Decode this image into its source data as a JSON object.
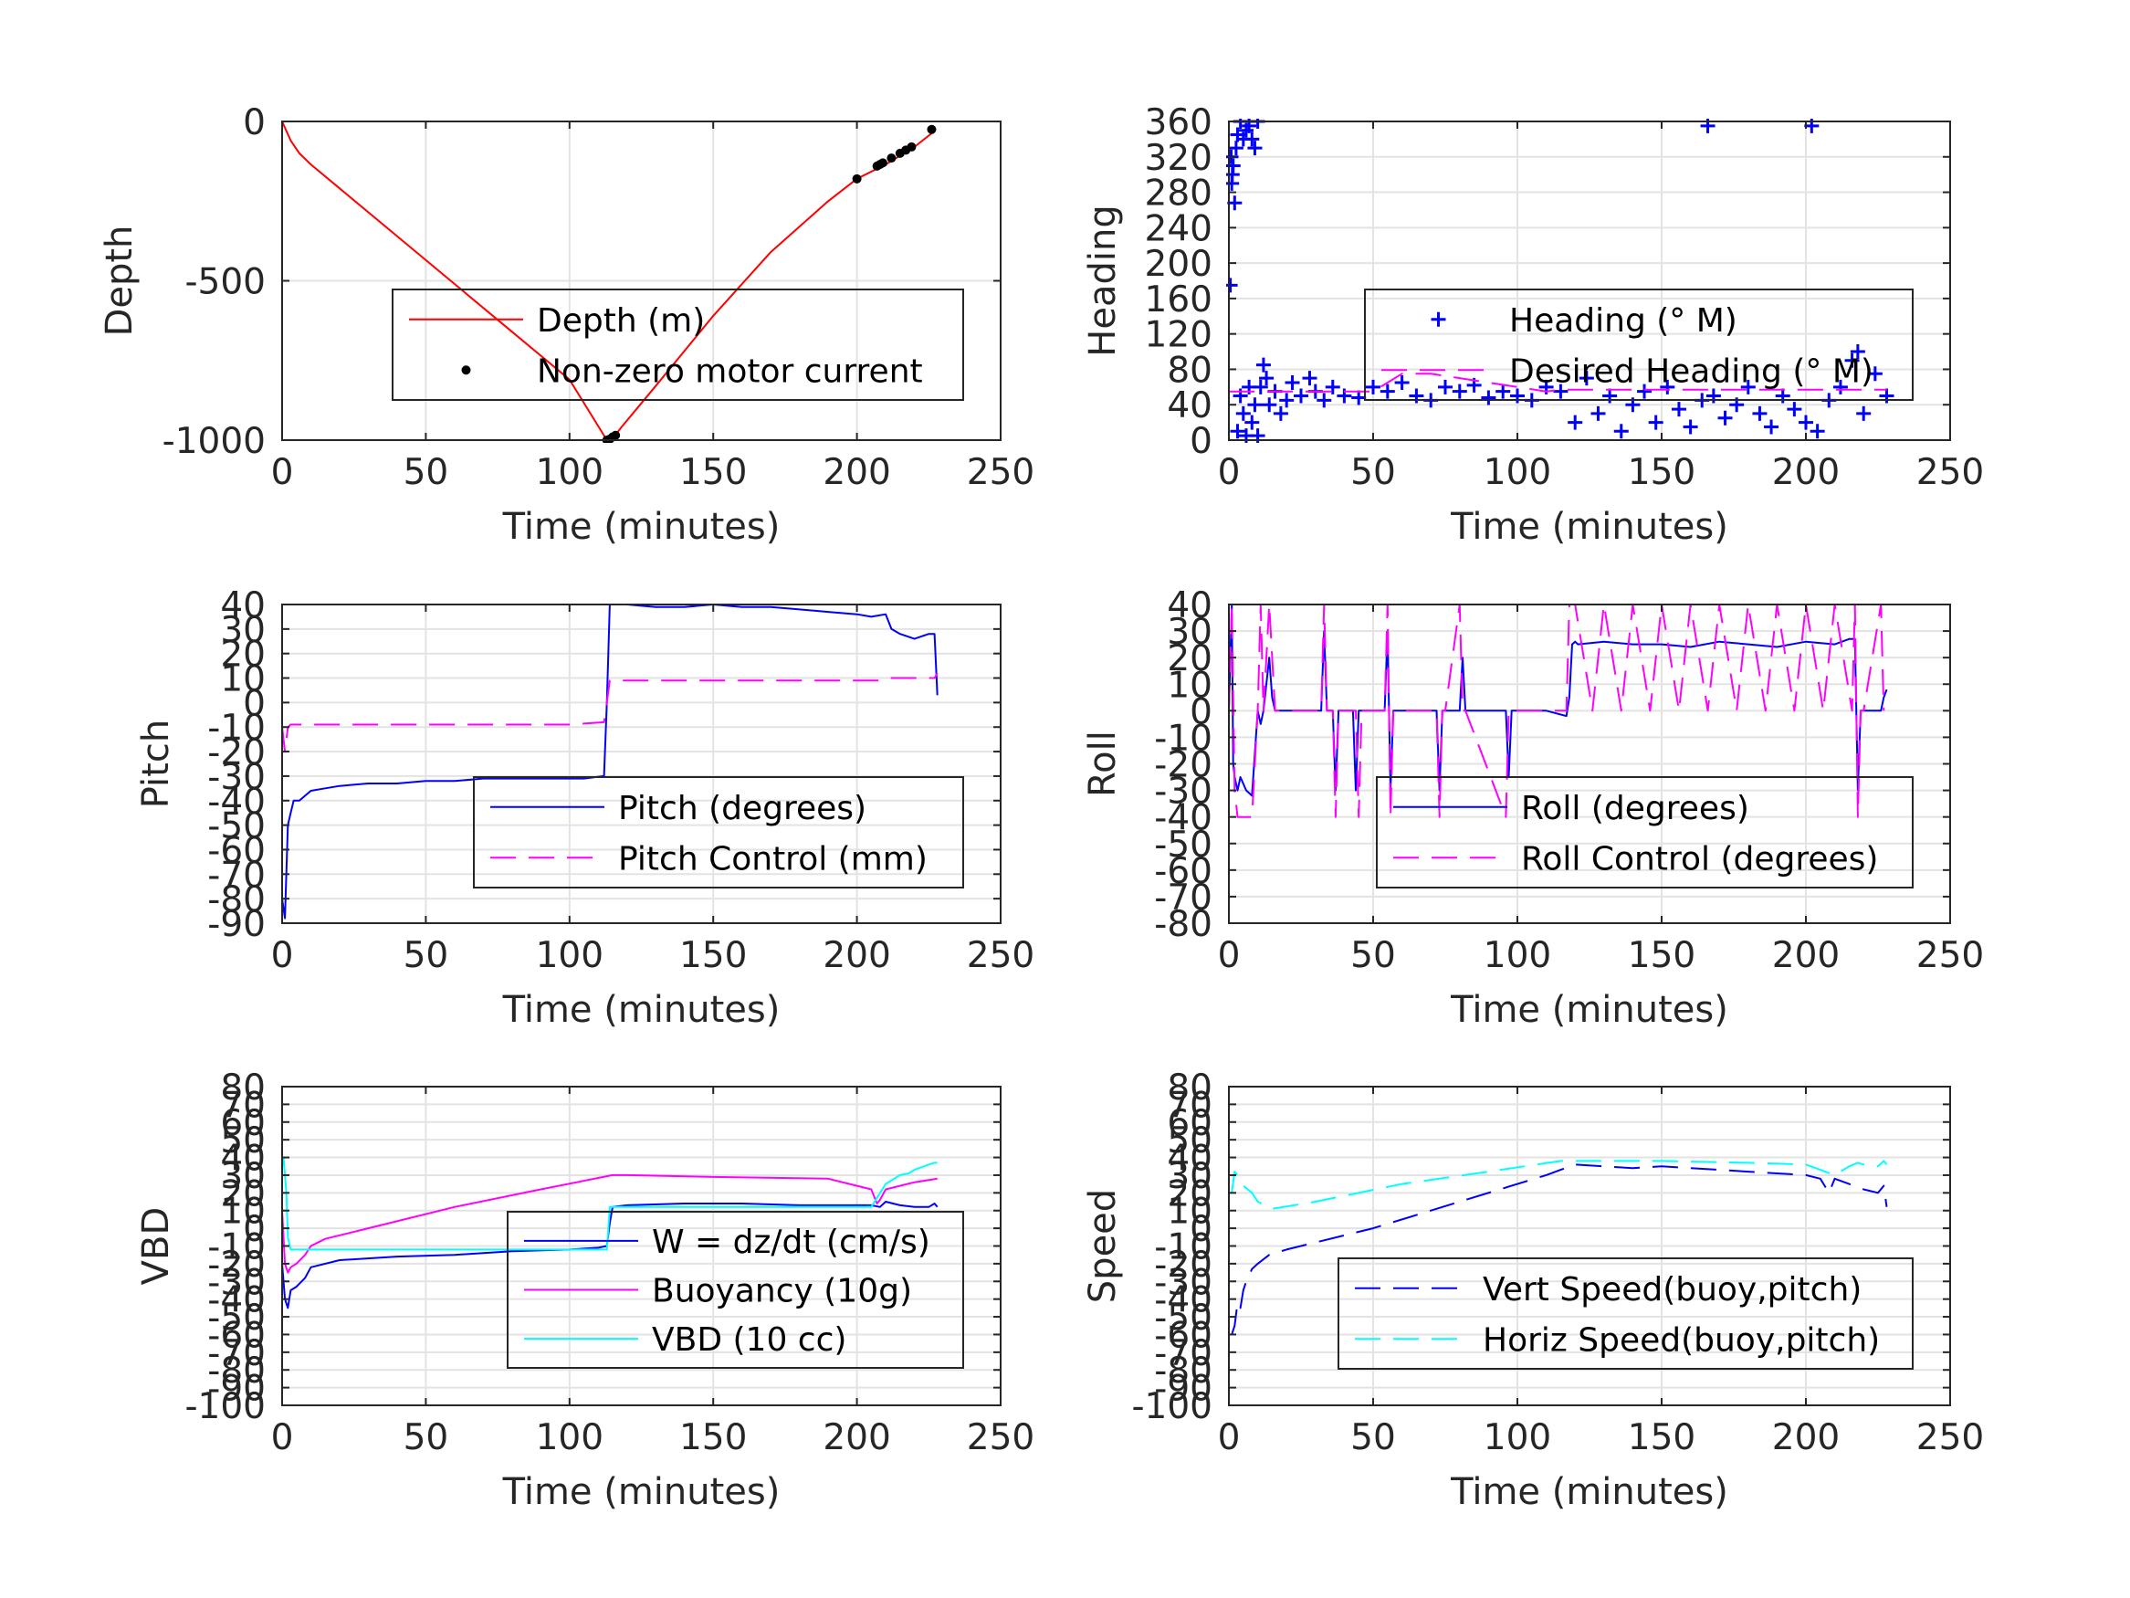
{
  "chart_data": [
    {
      "type": "line",
      "xlabel": "Time (minutes)",
      "ylabel": "Depth",
      "xlim": [
        0,
        250
      ],
      "ylim": [
        -1000,
        0
      ],
      "xticks": [
        0,
        50,
        100,
        150,
        200,
        250
      ],
      "yticks": [
        -1000,
        -500,
        0
      ],
      "grid": true,
      "legend": "center-right",
      "series": [
        {
          "name": "Depth (m)",
          "style": "solid",
          "color": "#ff0000",
          "x": [
            0,
            3,
            6,
            10,
            20,
            40,
            60,
            80,
            100,
            113,
            115,
            118,
            130,
            150,
            170,
            190,
            200,
            210,
            220,
            227
          ],
          "y": [
            0,
            -60,
            -100,
            -135,
            -210,
            -360,
            -510,
            -660,
            -810,
            -1000,
            -995,
            -960,
            -830,
            -610,
            -410,
            -250,
            -180,
            -135,
            -80,
            -30
          ]
        },
        {
          "name": "Non-zero motor current",
          "style": "dots",
          "color": "#000000",
          "x": [
            113,
            114,
            115,
            116,
            200,
            207,
            208,
            209,
            212,
            215,
            217,
            219,
            226
          ],
          "y": [
            -1000,
            -997,
            -990,
            -985,
            -180,
            -140,
            -135,
            -130,
            -115,
            -100,
            -90,
            -80,
            -25
          ]
        }
      ]
    },
    {
      "type": "scatter",
      "xlabel": "Time (minutes)",
      "ylabel": "Heading",
      "xlim": [
        0,
        250
      ],
      "ylim": [
        0,
        360
      ],
      "xticks": [
        0,
        50,
        100,
        150,
        200,
        250
      ],
      "yticks": [
        0,
        40,
        80,
        120,
        160,
        200,
        240,
        280,
        320,
        360
      ],
      "grid": true,
      "legend": "center-right",
      "series": [
        {
          "name": "Heading (° M)",
          "style": "plus",
          "color": "#0000ff",
          "x": [
            0.5,
            1,
            1.5,
            2,
            2.5,
            3,
            4,
            5,
            6,
            7,
            8,
            9,
            10,
            0.8,
            1.2,
            3,
            4,
            5,
            6,
            7,
            8,
            9,
            10,
            11,
            12,
            13,
            14,
            16,
            18,
            20,
            22,
            25,
            28,
            30,
            33,
            36,
            40,
            45,
            50,
            55,
            60,
            65,
            70,
            75,
            80,
            85,
            90,
            95,
            100,
            105,
            110,
            115,
            120,
            124,
            128,
            132,
            136,
            140,
            144,
            148,
            152,
            156,
            160,
            164,
            166,
            168,
            172,
            176,
            180,
            184,
            188,
            192,
            196,
            200,
            202,
            204,
            208,
            212,
            216,
            218,
            220,
            224,
            228
          ],
          "y": [
            175,
            290,
            310,
            268,
            330,
            345,
            360,
            340,
            350,
            355,
            340,
            330,
            360,
            320,
            300,
            10,
            50,
            30,
            5,
            60,
            20,
            40,
            5,
            60,
            85,
            70,
            40,
            55,
            30,
            45,
            65,
            50,
            70,
            55,
            45,
            60,
            50,
            48,
            60,
            55,
            65,
            50,
            45,
            60,
            55,
            62,
            48,
            55,
            50,
            45,
            60,
            55,
            20,
            70,
            30,
            50,
            10,
            40,
            55,
            20,
            60,
            35,
            15,
            45,
            355,
            50,
            25,
            40,
            60,
            30,
            15,
            50,
            35,
            20,
            355,
            10,
            45,
            60,
            90,
            100,
            30,
            75,
            50
          ]
        },
        {
          "name": "Desired Heading (° M)",
          "style": "dashed",
          "color": "#ff00ff",
          "x": [
            0,
            50,
            60,
            70,
            110,
            115,
            228
          ],
          "y": [
            55,
            55,
            75,
            75,
            55,
            57,
            57
          ]
        }
      ]
    },
    {
      "type": "line",
      "xlabel": "Time (minutes)",
      "ylabel": "Pitch",
      "xlim": [
        0,
        250
      ],
      "ylim": [
        -90,
        40
      ],
      "xticks": [
        0,
        50,
        100,
        150,
        200,
        250
      ],
      "yticks": [
        -90,
        -80,
        -70,
        -60,
        -50,
        -40,
        -30,
        -20,
        -10,
        0,
        10,
        20,
        30,
        40
      ],
      "grid": true,
      "legend": "center-right",
      "series": [
        {
          "name": "Pitch (degrees)",
          "style": "solid",
          "color": "#0000ff",
          "x": [
            0,
            1,
            2,
            3,
            4,
            6,
            8,
            10,
            15,
            20,
            30,
            40,
            50,
            60,
            70,
            80,
            90,
            100,
            105,
            112,
            113,
            114,
            115,
            120,
            130,
            140,
            150,
            160,
            170,
            180,
            190,
            200,
            205,
            210,
            212,
            215,
            220,
            225,
            227,
            228
          ],
          "y": [
            -80,
            -88,
            -50,
            -45,
            -40,
            -40,
            -38,
            -36,
            -35,
            -34,
            -33,
            -33,
            -32,
            -32,
            -31,
            -31,
            -31,
            -31,
            -31,
            -30,
            0,
            40,
            40,
            40,
            39,
            39,
            40,
            39,
            39,
            38,
            37,
            36,
            35,
            36,
            30,
            28,
            26,
            28,
            28,
            3
          ]
        },
        {
          "name": "Pitch Control (mm)",
          "style": "dashed",
          "color": "#ff00ff",
          "x": [
            0,
            1,
            2,
            3,
            5,
            50,
            100,
            112,
            113,
            114,
            120,
            160,
            200,
            208,
            210,
            227,
            228
          ],
          "y": [
            -10,
            -20,
            -10,
            -9,
            -9,
            -9,
            -9,
            -8,
            0,
            9,
            9,
            9,
            9,
            9,
            10,
            10,
            12
          ]
        }
      ]
    },
    {
      "type": "line",
      "xlabel": "Time (minutes)",
      "ylabel": "Roll",
      "xlim": [
        0,
        250
      ],
      "ylim": [
        -80,
        40
      ],
      "xticks": [
        0,
        50,
        100,
        150,
        200,
        250
      ],
      "yticks": [
        -80,
        -70,
        -60,
        -50,
        -40,
        -30,
        -20,
        -10,
        0,
        10,
        20,
        30,
        40
      ],
      "grid": true,
      "legend": "center-right",
      "series": [
        {
          "name": "Roll (degrees)",
          "style": "solid",
          "color": "#0000ff",
          "x": [
            0,
            1,
            1.5,
            2,
            3,
            4,
            6,
            8,
            10,
            11,
            12,
            14,
            15,
            16,
            30,
            32,
            33,
            34,
            36,
            37,
            38,
            43,
            44,
            45,
            46,
            54,
            55,
            56,
            57,
            72,
            73,
            74,
            75,
            80,
            81,
            82,
            96,
            97,
            98,
            110,
            117,
            118,
            119,
            120,
            121,
            130,
            140,
            150,
            160,
            170,
            180,
            190,
            200,
            210,
            215,
            217,
            218,
            219,
            220,
            226,
            227,
            228
          ],
          "y": [
            0,
            40,
            -20,
            -25,
            -30,
            -25,
            -30,
            -32,
            0,
            -5,
            0,
            20,
            5,
            0,
            0,
            0,
            30,
            0,
            0,
            -30,
            0,
            0,
            -30,
            0,
            0,
            0,
            30,
            -30,
            0,
            0,
            -30,
            0,
            0,
            0,
            20,
            0,
            0,
            -25,
            0,
            0,
            -2,
            5,
            25,
            26,
            25,
            26,
            25,
            25,
            24,
            26,
            25,
            24,
            26,
            25,
            27,
            27,
            -30,
            0,
            0,
            0,
            5,
            8
          ]
        },
        {
          "name": "Roll Control (degrees)",
          "style": "dashed",
          "color": "#ff00ff",
          "x": [
            0,
            1,
            2,
            3,
            6,
            8,
            10,
            11,
            12,
            14,
            16,
            32,
            33,
            34,
            36,
            37,
            38,
            44,
            45,
            46,
            54,
            55,
            56,
            57,
            72,
            73,
            74,
            75,
            80,
            81,
            82,
            96,
            97,
            98,
            117,
            118,
            120,
            126,
            130,
            136,
            140,
            146,
            150,
            156,
            160,
            166,
            170,
            176,
            180,
            186,
            190,
            196,
            200,
            206,
            210,
            216,
            217,
            218,
            219,
            220,
            226,
            227
          ],
          "y": [
            0,
            40,
            -30,
            -40,
            -40,
            -40,
            0,
            40,
            0,
            40,
            0,
            0,
            40,
            0,
            0,
            -40,
            0,
            0,
            -40,
            0,
            0,
            40,
            -40,
            0,
            0,
            -40,
            0,
            0,
            40,
            0,
            0,
            -40,
            0,
            0,
            0,
            40,
            40,
            0,
            40,
            0,
            40,
            0,
            40,
            0,
            40,
            0,
            40,
            0,
            40,
            0,
            40,
            0,
            40,
            0,
            40,
            0,
            40,
            -40,
            0,
            0,
            40,
            0
          ]
        }
      ]
    },
    {
      "type": "line",
      "xlabel": "Time (minutes)",
      "ylabel": "VBD",
      "xlim": [
        0,
        250
      ],
      "ylim": [
        -100,
        80
      ],
      "xticks": [
        0,
        50,
        100,
        150,
        200,
        250
      ],
      "yticks": [
        -100,
        -90,
        -80,
        -70,
        -60,
        -50,
        -40,
        -30,
        -20,
        -10,
        0,
        10,
        20,
        30,
        40,
        50,
        60,
        70,
        80
      ],
      "grid": true,
      "legend": "center-right",
      "series": [
        {
          "name": "W = dz/dt (cm/s)",
          "style": "solid",
          "color": "#0000ff",
          "x": [
            0,
            1,
            2,
            3,
            5,
            8,
            10,
            20,
            40,
            60,
            80,
            100,
            110,
            113,
            114,
            115,
            120,
            140,
            160,
            180,
            200,
            205,
            208,
            210,
            215,
            220,
            225,
            227,
            228
          ],
          "y": [
            -20,
            -40,
            -45,
            -35,
            -33,
            -28,
            -22,
            -18,
            -16,
            -15,
            -13,
            -12,
            -11,
            -10,
            3,
            12,
            13,
            14,
            14,
            13,
            13,
            13,
            12,
            15,
            13,
            12,
            12,
            14,
            12
          ]
        },
        {
          "name": "Buoyancy (10g)",
          "style": "solid",
          "color": "#ff00ff",
          "x": [
            0,
            1,
            2,
            3,
            5,
            8,
            10,
            15,
            30,
            60,
            90,
            115,
            120,
            150,
            190,
            200,
            205,
            207,
            208,
            210,
            215,
            220,
            228
          ],
          "y": [
            10,
            -20,
            -25,
            -22,
            -20,
            -15,
            -10,
            -6,
            0,
            12,
            22,
            30,
            30,
            29,
            28,
            24,
            22,
            14,
            16,
            22,
            24,
            26,
            28
          ]
        },
        {
          "name": "VBD (10 cc)",
          "style": "solid",
          "color": "#00ffff",
          "x": [
            0,
            0.5,
            1,
            1.5,
            2,
            3,
            50,
            100,
            113,
            114,
            120,
            150,
            200,
            205,
            210,
            215,
            218,
            220,
            225,
            227,
            228
          ],
          "y": [
            35,
            40,
            30,
            20,
            -5,
            -12,
            -12,
            -12,
            -12,
            12,
            12,
            12,
            12,
            12,
            25,
            30,
            31,
            33,
            36,
            37,
            37
          ]
        }
      ]
    },
    {
      "type": "line",
      "xlabel": "Time (minutes)",
      "ylabel": "Speed",
      "xlim": [
        0,
        250
      ],
      "ylim": [
        -100,
        80
      ],
      "xticks": [
        0,
        50,
        100,
        150,
        200,
        250
      ],
      "yticks": [
        -100,
        -90,
        -80,
        -70,
        -60,
        -50,
        -40,
        -30,
        -20,
        -10,
        0,
        10,
        20,
        30,
        40,
        50,
        60,
        70,
        80
      ],
      "grid": true,
      "legend": "center-right",
      "series": [
        {
          "name": "Vert Speed(buoy,pitch)",
          "style": "dashed",
          "color": "#0000ff",
          "x": [
            1,
            2,
            3,
            4,
            5,
            6,
            8,
            10,
            14,
            20,
            50,
            80,
            110,
            115,
            120,
            130,
            140,
            150,
            160,
            170,
            180,
            190,
            200,
            205,
            208,
            210,
            215,
            220,
            225,
            227,
            228
          ],
          "y": [
            -60,
            -55,
            -42,
            -45,
            -35,
            -30,
            -23,
            -20,
            -15,
            -12,
            0,
            15,
            30,
            33,
            36,
            35,
            34,
            35,
            34,
            33,
            32,
            31,
            30,
            28,
            20,
            28,
            25,
            22,
            20,
            24,
            12
          ]
        },
        {
          "name": "Horiz Speed(buoy,pitch)",
          "style": "dashed",
          "color": "#00ffff",
          "x": [
            1,
            2,
            3,
            5,
            8,
            10,
            15,
            30,
            60,
            90,
            115,
            120,
            150,
            180,
            200,
            205,
            210,
            215,
            218,
            220,
            225,
            227,
            228
          ],
          "y": [
            20,
            32,
            30,
            24,
            20,
            15,
            11,
            15,
            25,
            32,
            38,
            38,
            38,
            37,
            36,
            33,
            30,
            35,
            37,
            36,
            35,
            38,
            36
          ]
        }
      ]
    }
  ]
}
